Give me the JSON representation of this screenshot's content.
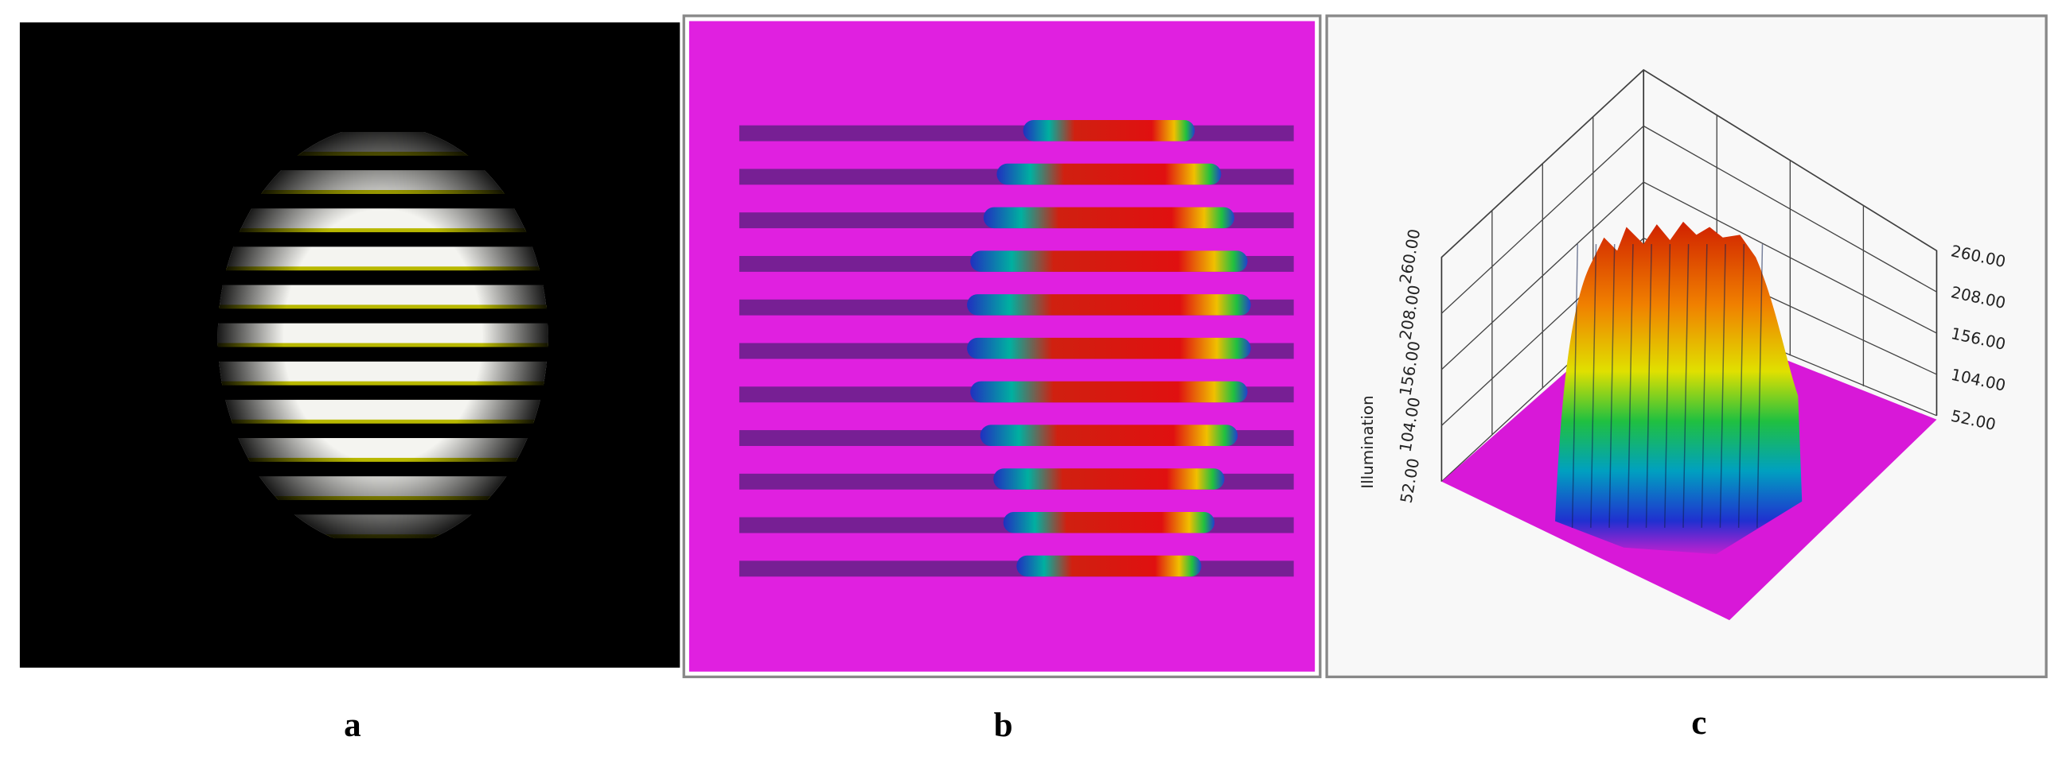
{
  "panels": [
    {
      "label": "a"
    },
    {
      "label": "b"
    },
    {
      "label": "c",
      "axis_title": "Illumination",
      "ticks": [
        {
          "value": 52,
          "label": "52.00"
        },
        {
          "value": 104,
          "label": "104.00"
        },
        {
          "value": 156,
          "label": "156.00"
        },
        {
          "value": 208,
          "label": "208.00"
        },
        {
          "value": 260,
          "label": "260.00"
        }
      ]
    }
  ]
}
